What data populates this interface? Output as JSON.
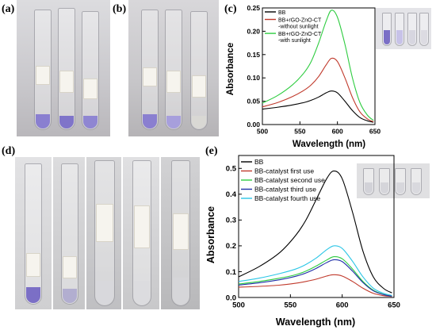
{
  "panels": {
    "a": "(a)",
    "b": "(b)",
    "c": "(c)",
    "d": "(d)",
    "e": "(e)"
  },
  "colors": {
    "black": "#000000",
    "red": "#c0392b",
    "green": "#2ecc40",
    "blue": "#1f2fa8",
    "cyan": "#2bc6e6",
    "violet_solution": "#8a7fd0",
    "pale_violet": "#bdb6e6"
  },
  "chart_data": [
    {
      "type": "line",
      "panel": "c",
      "xlabel": "Wavelength (nm)",
      "ylabel": "Absorbance",
      "xlim": [
        500,
        650
      ],
      "ylim": [
        0,
        0.25
      ],
      "xticks": [
        500,
        550,
        600,
        650
      ],
      "yticks": [
        0.0,
        0.05,
        0.1,
        0.15,
        0.2,
        0.25
      ],
      "ytick_labels": [
        "0.00",
        "0.05",
        "0.10",
        "0.15",
        "0.20",
        "0.25"
      ],
      "legend_position": "top-left",
      "grid": false,
      "series": [
        {
          "name": "BB",
          "color": "#000000",
          "x": [
            500,
            520,
            540,
            555,
            565,
            575,
            585,
            592,
            600,
            610,
            620,
            630,
            640,
            648
          ],
          "y": [
            0.033,
            0.037,
            0.042,
            0.047,
            0.052,
            0.059,
            0.068,
            0.072,
            0.068,
            0.05,
            0.03,
            0.015,
            0.008,
            0.005
          ]
        },
        {
          "name": "BB+rGO-ZnO-CT -without sunlight",
          "color": "#c0392b",
          "x": [
            500,
            520,
            540,
            555,
            565,
            575,
            585,
            592,
            600,
            610,
            620,
            630,
            640,
            648
          ],
          "y": [
            0.038,
            0.047,
            0.06,
            0.073,
            0.085,
            0.103,
            0.128,
            0.142,
            0.135,
            0.1,
            0.058,
            0.027,
            0.012,
            0.006
          ]
        },
        {
          "name": "BB+rGO-ZnO-CT -with sunlight",
          "color": "#2ecc40",
          "x": [
            500,
            520,
            540,
            555,
            565,
            575,
            585,
            592,
            600,
            610,
            620,
            630,
            640,
            648
          ],
          "y": [
            0.046,
            0.062,
            0.085,
            0.11,
            0.135,
            0.175,
            0.222,
            0.245,
            0.23,
            0.172,
            0.1,
            0.047,
            0.02,
            0.009
          ]
        }
      ]
    },
    {
      "type": "line",
      "panel": "e",
      "xlabel": "Wavelength (nm)",
      "ylabel": "Absorbance",
      "xlim": [
        500,
        650
      ],
      "ylim": [
        0,
        0.55
      ],
      "xticks": [
        500,
        550,
        600,
        650
      ],
      "yticks": [
        0.0,
        0.1,
        0.2,
        0.3,
        0.4,
        0.5
      ],
      "ytick_labels": [
        "0.0",
        "0.1",
        "0.2",
        "0.3",
        "0.4",
        "0.5"
      ],
      "legend_position": "top-left",
      "grid": false,
      "series": [
        {
          "name": "BB",
          "color": "#000000",
          "x": [
            500,
            520,
            540,
            555,
            565,
            575,
            585,
            592,
            600,
            610,
            620,
            630,
            640,
            648
          ],
          "y": [
            0.08,
            0.12,
            0.175,
            0.24,
            0.3,
            0.38,
            0.46,
            0.49,
            0.46,
            0.33,
            0.18,
            0.08,
            0.035,
            0.018
          ]
        },
        {
          "name": "BB-catalyst first use",
          "color": "#c0392b",
          "x": [
            500,
            520,
            540,
            555,
            565,
            575,
            585,
            592,
            600,
            610,
            620,
            630,
            640,
            648
          ],
          "y": [
            0.04,
            0.043,
            0.048,
            0.055,
            0.062,
            0.071,
            0.083,
            0.088,
            0.083,
            0.062,
            0.036,
            0.016,
            0.007,
            0.004
          ]
        },
        {
          "name": "BB-catalyst second use",
          "color": "#2ecc40",
          "x": [
            500,
            520,
            540,
            555,
            565,
            575,
            585,
            592,
            600,
            610,
            620,
            630,
            640,
            648
          ],
          "y": [
            0.052,
            0.062,
            0.075,
            0.088,
            0.102,
            0.122,
            0.145,
            0.158,
            0.15,
            0.11,
            0.062,
            0.028,
            0.012,
            0.006
          ]
        },
        {
          "name": "BB-catalyst third use",
          "color": "#1f2fa8",
          "x": [
            500,
            520,
            540,
            555,
            565,
            575,
            585,
            592,
            600,
            610,
            620,
            630,
            640,
            648
          ],
          "y": [
            0.048,
            0.057,
            0.069,
            0.082,
            0.095,
            0.113,
            0.135,
            0.146,
            0.139,
            0.102,
            0.058,
            0.026,
            0.011,
            0.005
          ]
        },
        {
          "name": "BB-catalyst fourth use",
          "color": "#2bc6e6",
          "x": [
            500,
            520,
            540,
            555,
            565,
            575,
            585,
            592,
            600,
            610,
            620,
            630,
            640,
            648
          ],
          "y": [
            0.062,
            0.075,
            0.093,
            0.11,
            0.128,
            0.153,
            0.185,
            0.2,
            0.19,
            0.14,
            0.08,
            0.036,
            0.016,
            0.008
          ]
        }
      ]
    }
  ]
}
